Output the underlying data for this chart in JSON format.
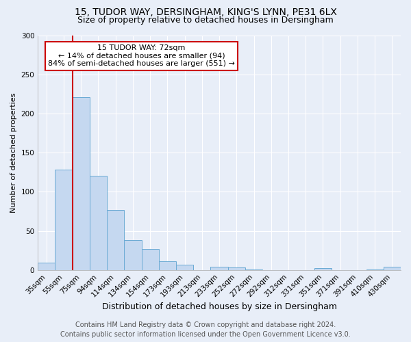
{
  "title1": "15, TUDOR WAY, DERSINGHAM, KING'S LYNN, PE31 6LX",
  "title2": "Size of property relative to detached houses in Dersingham",
  "xlabel": "Distribution of detached houses by size in Dersingham",
  "ylabel": "Number of detached properties",
  "bin_labels": [
    "35sqm",
    "55sqm",
    "75sqm",
    "94sqm",
    "114sqm",
    "134sqm",
    "154sqm",
    "173sqm",
    "193sqm",
    "213sqm",
    "233sqm",
    "252sqm",
    "272sqm",
    "292sqm",
    "312sqm",
    "331sqm",
    "351sqm",
    "371sqm",
    "391sqm",
    "410sqm",
    "430sqm"
  ],
  "bar_values": [
    9,
    128,
    221,
    120,
    77,
    38,
    27,
    11,
    7,
    0,
    4,
    3,
    1,
    0,
    0,
    0,
    2,
    0,
    0,
    1,
    4
  ],
  "bar_color": "#c5d8f0",
  "bar_edge_color": "#6aaad4",
  "vline_color": "#cc0000",
  "ylim": [
    0,
    300
  ],
  "yticks": [
    0,
    50,
    100,
    150,
    200,
    250,
    300
  ],
  "annotation_title": "15 TUDOR WAY: 72sqm",
  "annotation_line1": "← 14% of detached houses are smaller (94)",
  "annotation_line2": "84% of semi-detached houses are larger (551) →",
  "annotation_box_color": "#ffffff",
  "annotation_box_edge": "#cc0000",
  "footer1": "Contains HM Land Registry data © Crown copyright and database right 2024.",
  "footer2": "Contains public sector information licensed under the Open Government Licence v3.0.",
  "background_color": "#e8eef8",
  "grid_color": "#ffffff",
  "title1_fontsize": 10,
  "title2_fontsize": 9,
  "xlabel_fontsize": 9,
  "ylabel_fontsize": 8,
  "tick_fontsize": 7.5,
  "footer_fontsize": 7,
  "annot_fontsize": 8
}
